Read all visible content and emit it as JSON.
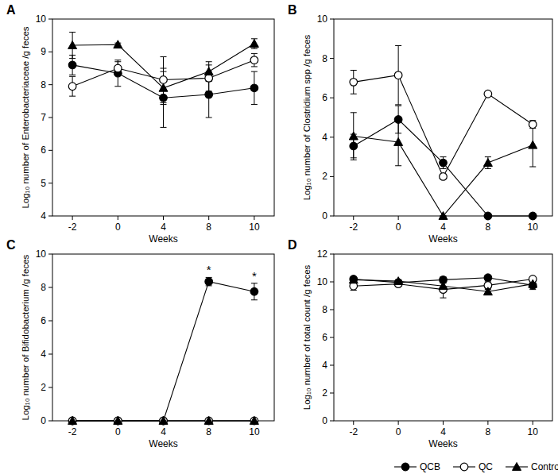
{
  "chart_data": [
    {
      "type": "line",
      "title": "A",
      "x_label": "Weeks",
      "y_label": "Log₁₀ number of Enterobacteriaceae /g feces",
      "categories": [
        "-2",
        "0",
        "4",
        "8",
        "10"
      ],
      "ylim": [
        4,
        10
      ],
      "yticks": [
        4,
        5,
        6,
        7,
        8,
        9,
        10
      ],
      "series": [
        {
          "name": "QCB",
          "color": "#000000",
          "marker": "circle",
          "values": [
            8.6,
            8.35,
            7.6,
            7.7,
            7.9
          ],
          "errors": [
            0.3,
            0.4,
            0.9,
            0.7,
            0.5
          ]
        },
        {
          "name": "QC",
          "color": "#000000",
          "marker": "open-circle",
          "values": [
            7.95,
            8.5,
            8.15,
            8.2,
            8.75
          ],
          "errors": [
            0.3,
            0.2,
            0.7,
            0.4,
            0.2
          ]
        },
        {
          "name": "Control",
          "color": "#000000",
          "marker": "triangle",
          "values": [
            9.2,
            9.22,
            7.9,
            8.4,
            9.25
          ],
          "errors": [
            0.4,
            0.05,
            0.5,
            0.3,
            0.15
          ]
        }
      ]
    },
    {
      "type": "line",
      "title": "B",
      "x_label": "Weeks",
      "y_label": "Log₁₀ number of Clostridium spp /g feces",
      "categories": [
        "-2",
        "0",
        "4",
        "8",
        "10"
      ],
      "ylim": [
        0,
        10
      ],
      "yticks": [
        0,
        2,
        4,
        6,
        8,
        10
      ],
      "series": [
        {
          "name": "QCB",
          "color": "#000000",
          "marker": "circle",
          "values": [
            3.55,
            4.9,
            2.7,
            0,
            0
          ],
          "errors": [
            0.6,
            0.7,
            0.3,
            0,
            0
          ]
        },
        {
          "name": "QC",
          "color": "#000000",
          "marker": "open-circle",
          "values": [
            6.8,
            7.15,
            2.0,
            6.2,
            4.65
          ],
          "errors": [
            0.6,
            1.5,
            0.1,
            0.1,
            0.2
          ]
        },
        {
          "name": "Control",
          "color": "#000000",
          "marker": "triangle",
          "values": [
            4.05,
            3.75,
            0,
            2.7,
            3.6
          ],
          "errors": [
            1.2,
            1.2,
            0,
            0.3,
            1.1
          ]
        }
      ]
    },
    {
      "type": "line",
      "title": "C",
      "x_label": "Weeks",
      "y_label": "Log₁₀ number of Bifidobacterium /g feces",
      "categories": [
        "-2",
        "0",
        "4",
        "8",
        "10"
      ],
      "ylim": [
        0,
        10
      ],
      "yticks": [
        0,
        2,
        4,
        6,
        8,
        10
      ],
      "annotations": [
        {
          "text": "*",
          "x": "8"
        },
        {
          "text": "*",
          "x": "10"
        }
      ],
      "series": [
        {
          "name": "QCB",
          "color": "#000000",
          "marker": "circle",
          "values": [
            0,
            0,
            0,
            8.35,
            7.75
          ],
          "errors": [
            0,
            0,
            0,
            0.25,
            0.5
          ]
        },
        {
          "name": "QC",
          "color": "#000000",
          "marker": "open-circle",
          "values": [
            0,
            0,
            0,
            0,
            0
          ],
          "errors": [
            0,
            0,
            0,
            0,
            0
          ]
        },
        {
          "name": "Control",
          "color": "#000000",
          "marker": "triangle",
          "values": [
            0,
            0,
            0,
            0,
            0
          ],
          "errors": [
            0,
            0,
            0,
            0,
            0
          ]
        }
      ]
    },
    {
      "type": "line",
      "title": "D",
      "x_label": "Weeks",
      "y_label": "Log₁₀ number of total count /g feces",
      "categories": [
        "-2",
        "0",
        "4",
        "8",
        "10"
      ],
      "ylim": [
        0,
        12
      ],
      "yticks": [
        0,
        2,
        4,
        6,
        8,
        10,
        12
      ],
      "legend": "bottom right",
      "series": [
        {
          "name": "QCB",
          "color": "#000000",
          "marker": "circle",
          "values": [
            10.2,
            9.95,
            10.15,
            10.3,
            9.75
          ],
          "errors": [
            0.15,
            0.2,
            0.2,
            0.15,
            0.3
          ]
        },
        {
          "name": "QC",
          "color": "#000000",
          "marker": "open-circle",
          "values": [
            9.7,
            9.85,
            9.45,
            9.75,
            10.2
          ],
          "errors": [
            0.3,
            0.15,
            0.6,
            0.3,
            0.1
          ]
        },
        {
          "name": "Control",
          "color": "#000000",
          "marker": "triangle",
          "values": [
            10.15,
            10.05,
            9.7,
            9.3,
            9.85
          ],
          "errors": [
            0.1,
            0.1,
            0.2,
            0.2,
            0.15
          ]
        }
      ]
    }
  ]
}
